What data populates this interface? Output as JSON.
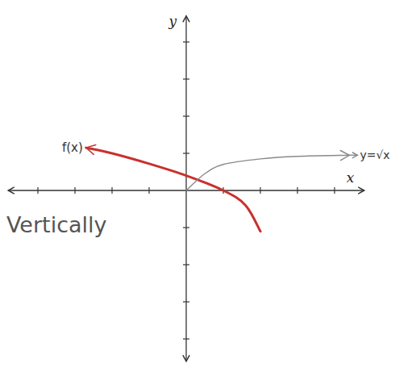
{
  "chart_data": {
    "type": "line",
    "x_label": "x",
    "y_label": "y",
    "xlim": [
      -4.8,
      4.8
    ],
    "ylim": [
      -4.6,
      4.7
    ],
    "xticks": [
      -4,
      -3,
      -2,
      -1,
      1,
      2,
      3,
      4
    ],
    "yticks": [
      -4,
      -3,
      -2,
      -1,
      1,
      2,
      3,
      4
    ],
    "tick_labels": false,
    "grid": false,
    "series": [
      {
        "name": "f(x)",
        "color": "#c8312e",
        "x": [
          -2.7,
          -2,
          -1,
          0,
          1,
          1.6,
          2
        ],
        "values": [
          1.15,
          1,
          0.72,
          0.4,
          0,
          -0.4,
          -1.1
        ]
      },
      {
        "name": "y=√x",
        "color": "#8a8a8a",
        "x": [
          0,
          0.5,
          1,
          2,
          3,
          4.4
        ],
        "values": [
          0,
          0.45,
          0.7,
          0.85,
          0.92,
          0.95
        ]
      }
    ],
    "annotations": [
      "Vertically"
    ]
  }
}
